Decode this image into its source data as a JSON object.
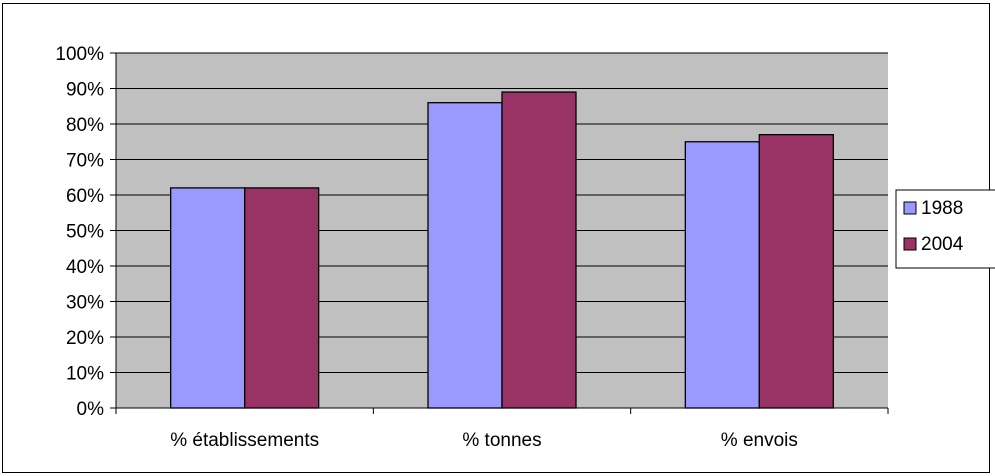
{
  "chart_data": {
    "type": "bar",
    "categories": [
      "% établissements",
      "% tonnes",
      "% envois"
    ],
    "series": [
      {
        "name": "1988",
        "values": [
          62,
          86,
          75
        ]
      },
      {
        "name": "2004",
        "values": [
          62,
          89,
          77
        ]
      }
    ],
    "ylim": [
      0,
      100
    ],
    "yticks": [
      "0%",
      "10%",
      "20%",
      "30%",
      "40%",
      "50%",
      "60%",
      "70%",
      "80%",
      "90%",
      "100%"
    ],
    "grid": true,
    "legend_position": "right",
    "colors": {
      "1988": "#9999ff",
      "2004": "#993366",
      "plot_background": "#c0c0c0"
    }
  }
}
